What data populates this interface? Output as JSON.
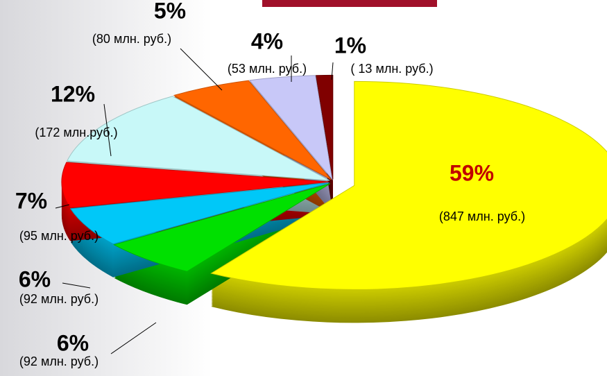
{
  "chart_data": {
    "type": "pie",
    "values": [
      59,
      6,
      6,
      7,
      12,
      5,
      4,
      1
    ],
    "value_labels": [
      "59%",
      "6%",
      "6%",
      "7%",
      "12%",
      "5%",
      "4%",
      "1%"
    ],
    "amount_labels": [
      "(847 млн. руб.)",
      "(92 млн. руб.)",
      "(92 млн. руб.)",
      "(95 млн. руб.)",
      "(172 млн.руб.)",
      "(80 млн. руб.)",
      "(53 млн. руб.)",
      "( 13 млн. руб.)"
    ],
    "colors": [
      "#ffff00",
      "#00e000",
      "#00c8f8",
      "#ff0000",
      "#c8f8f8",
      "#ff6600",
      "#c8c8f8",
      "#800000"
    ]
  }
}
